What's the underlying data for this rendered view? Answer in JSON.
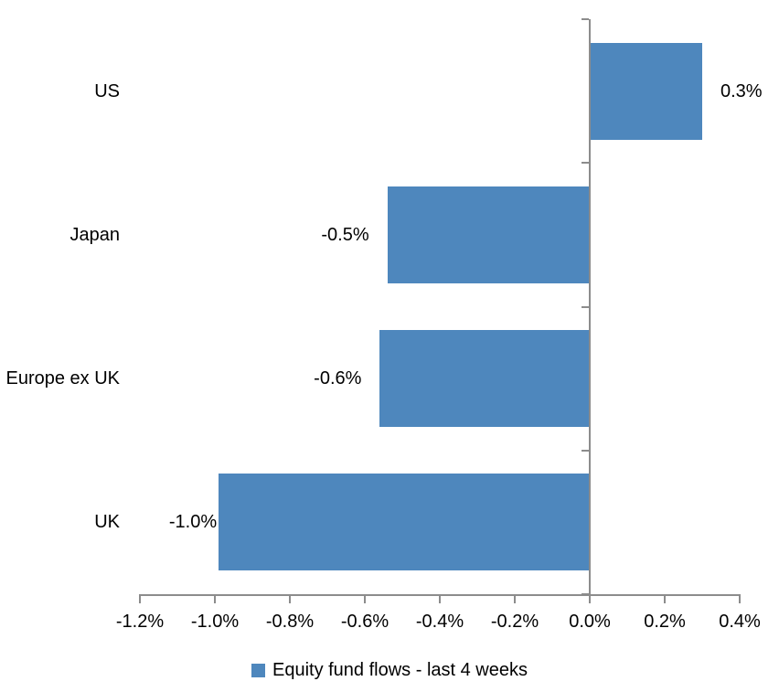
{
  "chart_data": {
    "type": "bar",
    "orientation": "horizontal",
    "title": "",
    "xlabel": "",
    "ylabel": "",
    "categories": [
      "US",
      "Japan",
      "Europe ex UK",
      "UK"
    ],
    "values": [
      0.3,
      -0.5,
      -0.6,
      -1.0
    ],
    "value_labels": [
      "0.3%",
      "-0.5%",
      "-0.6%",
      "-1.0%"
    ],
    "bar_plot_values": [
      0.3,
      -0.54,
      -0.56,
      -0.99
    ],
    "value_label_gaps": [
      20,
      20,
      20,
      2
    ],
    "xlim": [
      -1.2,
      0.4
    ],
    "xtick_values": [
      -1.2,
      -1.0,
      -0.8,
      -0.6,
      -0.4,
      -0.2,
      0.0,
      0.2,
      0.4
    ],
    "xtick_labels": [
      "-1.2%",
      "-1.0%",
      "-0.8%",
      "-0.6%",
      "-0.4%",
      "-0.2%",
      "0.0%",
      "0.2%",
      "0.4%"
    ],
    "grid": false,
    "legend_label": "Equity fund flows - last 4 weeks",
    "legend_position": "bottom-center",
    "bar_color": "#4E87BD",
    "axis_color": "#8C8C8C",
    "text_color": "#000000",
    "background_color": "#FFFFFF"
  }
}
